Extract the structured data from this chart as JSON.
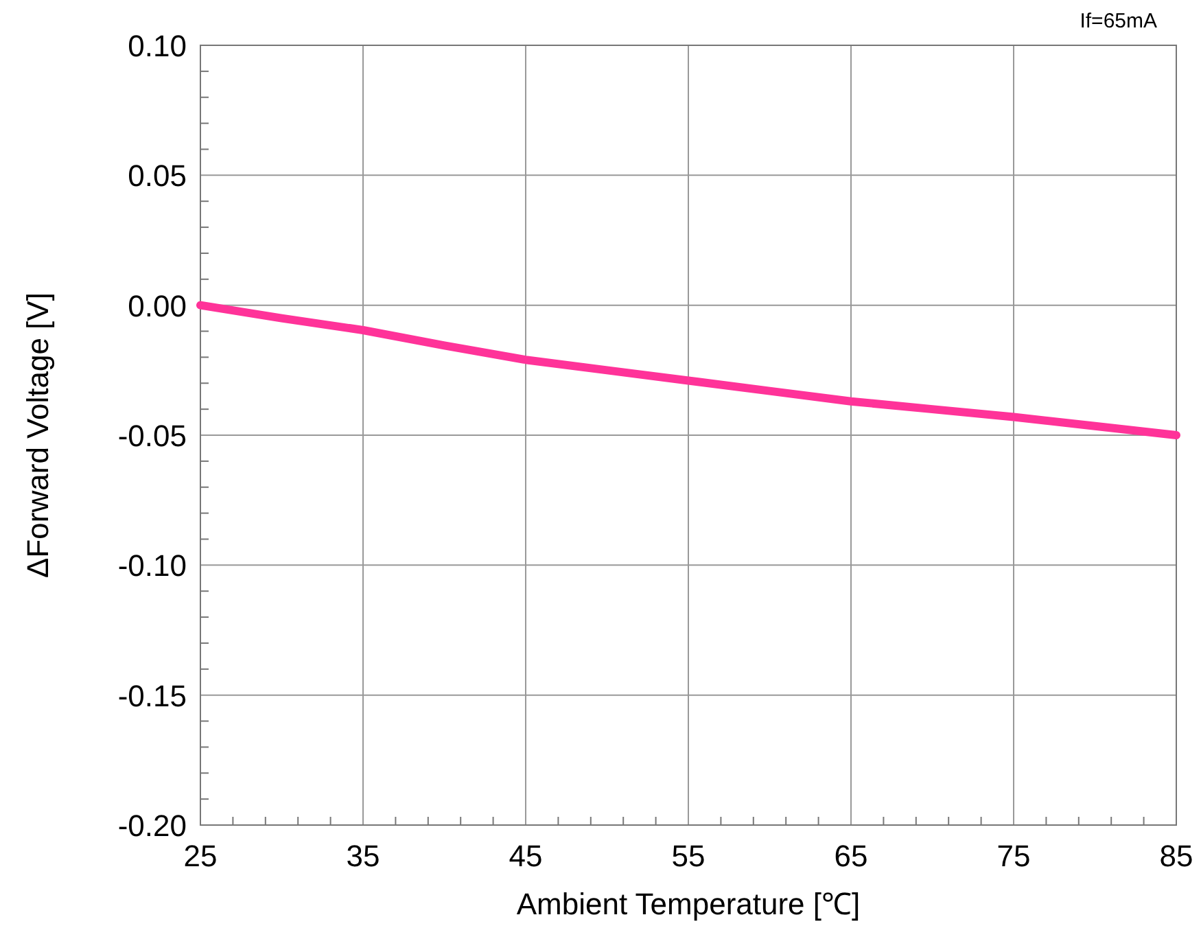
{
  "chart_data": {
    "type": "line",
    "xlabel": "Ambient Temperature [℃]",
    "ylabel": "ΔForward Voltage [V]",
    "annotations": [
      "If=65mA"
    ],
    "x": [
      25,
      30,
      35,
      40,
      45,
      50,
      55,
      60,
      65,
      70,
      75,
      80,
      85
    ],
    "series": [
      {
        "color": "#ff3399",
        "values": [
          0,
          -0.005,
          -0.0096,
          -0.0155,
          -0.021,
          -0.025,
          -0.029,
          -0.033,
          -0.037,
          -0.04,
          -0.043,
          -0.0465,
          -0.05
        ]
      }
    ],
    "xlim": [
      25,
      85
    ],
    "ylim": [
      -0.2,
      0.1
    ],
    "xticks": [
      25,
      {
        "value": 27,
        "label": null
      },
      {
        "value": 29,
        "label": null
      },
      {
        "value": 31,
        "label": null
      },
      {
        "value": 33,
        "label": null
      },
      35,
      {
        "value": 37,
        "label": null
      },
      {
        "value": 39,
        "label": null
      },
      {
        "value": 41,
        "label": null
      },
      {
        "value": 43,
        "label": null
      },
      45,
      {
        "value": 47,
        "label": null
      },
      {
        "value": 49,
        "label": null
      },
      {
        "value": 51,
        "label": null
      },
      {
        "value": 53,
        "label": null
      },
      55,
      {
        "value": 57,
        "label": null
      },
      {
        "value": 59,
        "label": null
      },
      {
        "value": 61,
        "label": null
      },
      {
        "value": 63,
        "label": null
      },
      65,
      {
        "value": 67,
        "label": null
      },
      {
        "value": 69,
        "label": null
      },
      {
        "value": 71,
        "label": null
      },
      {
        "value": 73,
        "label": null
      },
      75,
      {
        "value": 77,
        "label": null
      },
      {
        "value": 79,
        "label": null
      },
      {
        "value": 81,
        "label": null
      },
      {
        "value": 83,
        "label": null
      },
      85
    ],
    "yticks": [
      {
        "value": -0.2,
        "label": "-0.20"
      },
      {
        "value": -0.19,
        "label": null
      },
      {
        "value": -0.18,
        "label": null
      },
      {
        "value": -0.17,
        "label": null
      },
      {
        "value": -0.16,
        "label": null
      },
      {
        "value": -0.15,
        "label": "-0.15"
      },
      {
        "value": -0.14,
        "label": null
      },
      {
        "value": -0.13,
        "label": null
      },
      {
        "value": -0.12,
        "label": null
      },
      {
        "value": -0.11,
        "label": null
      },
      {
        "value": -0.1,
        "label": "-0.10"
      },
      {
        "value": -0.09,
        "label": null
      },
      {
        "value": -0.08,
        "label": null
      },
      {
        "value": -0.07,
        "label": null
      },
      {
        "value": -0.06,
        "label": null
      },
      {
        "value": -0.05,
        "label": "-0.05"
      },
      {
        "value": -0.04,
        "label": null
      },
      {
        "value": -0.03,
        "label": null
      },
      {
        "value": -0.02,
        "label": null
      },
      {
        "value": -0.01,
        "label": null
      },
      {
        "value": 0,
        "label": "0.00"
      },
      {
        "value": 0.01,
        "label": null
      },
      {
        "value": 0.02,
        "label": null
      },
      {
        "value": 0.03,
        "label": null
      },
      {
        "value": 0.04,
        "label": null
      },
      {
        "value": 0.05,
        "label": "0.05"
      },
      {
        "value": 0.06,
        "label": null
      },
      {
        "value": 0.07,
        "label": null
      },
      {
        "value": 0.08,
        "label": null
      },
      {
        "value": 0.09,
        "label": null
      },
      {
        "value": 0.1,
        "label": "0.10"
      }
    ],
    "grid": true,
    "marker": "none",
    "line_style": "solid"
  }
}
